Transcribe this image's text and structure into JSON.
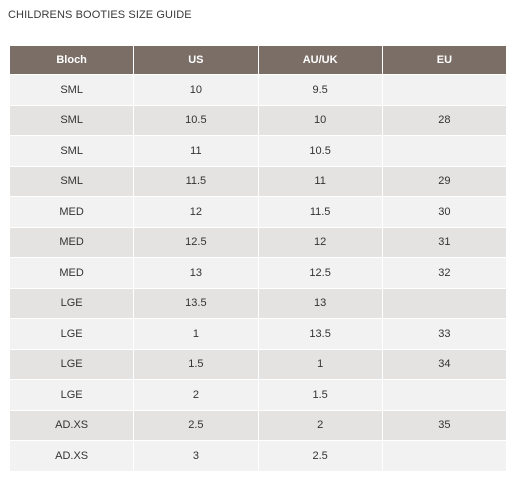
{
  "header": {
    "title": "CHILDRENS BOOTIES SIZE GUIDE"
  },
  "table": {
    "columns": [
      "Bloch",
      "US",
      "AU/UK",
      "EU"
    ],
    "rows": [
      [
        "SML",
        "10",
        "9.5",
        null
      ],
      [
        "SML",
        "10.5",
        "10",
        "28"
      ],
      [
        "SML",
        "11",
        "10.5",
        null
      ],
      [
        "SML",
        "11.5",
        "11",
        "29"
      ],
      [
        "MED",
        "12",
        "11.5",
        "30"
      ],
      [
        "MED",
        "12.5",
        "12",
        "31"
      ],
      [
        "MED",
        "13",
        "12.5",
        "32"
      ],
      [
        "LGE",
        "13.5",
        "13",
        null
      ],
      [
        "LGE",
        "1",
        "13.5",
        "33"
      ],
      [
        "LGE",
        "1.5",
        "1",
        "34"
      ],
      [
        "LGE",
        "2",
        "1.5",
        null
      ],
      [
        "AD.XS",
        "2.5",
        "2",
        "35"
      ],
      [
        "AD.XS",
        "3",
        "2.5",
        null
      ]
    ]
  }
}
